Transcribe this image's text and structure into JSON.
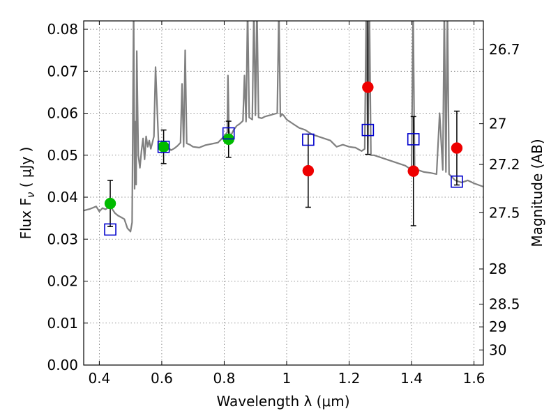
{
  "chart_data": {
    "type": "scatter",
    "xlabel": "Wavelength  λ (μm)",
    "ylabel_left": "Flux  F",
    "ylabel_left_sub": "ν",
    "ylabel_left_unit": "( μJy )",
    "ylabel_right": "Magnitude (AB)",
    "xlim": [
      0.35,
      1.63
    ],
    "ylim": [
      0.0,
      0.082
    ],
    "x_ticks": [
      0.4,
      0.6,
      0.8,
      1.0,
      1.2,
      1.4,
      1.6
    ],
    "x_tick_labels": [
      "0.4",
      "0.6",
      "0.8",
      "1",
      "1.2",
      "1.4",
      "1.6"
    ],
    "y_ticks": [
      0.0,
      0.01,
      0.02,
      0.03,
      0.04,
      0.05,
      0.06,
      0.07,
      0.08
    ],
    "y_tick_labels": [
      "0.00",
      "0.01",
      "0.02",
      "0.03",
      "0.04",
      "0.05",
      "0.06",
      "0.07",
      "0.08"
    ],
    "right_ticks": [
      {
        "label": "26.7",
        "flux": 0.0752
      },
      {
        "label": "27",
        "flux": 0.0575
      },
      {
        "label": "27.2",
        "flux": 0.0478
      },
      {
        "label": "27.5",
        "flux": 0.0363
      },
      {
        "label": "28",
        "flux": 0.0229
      },
      {
        "label": "28.5",
        "flux": 0.0145
      },
      {
        "label": "29",
        "flux": 0.0091
      },
      {
        "label": "30",
        "flux": 0.0036
      }
    ],
    "grid": true,
    "series": [
      {
        "marker": "circle",
        "color": "#00bb00",
        "points": [
          {
            "x": 0.435,
            "y": 0.0385,
            "err": 0.0055
          },
          {
            "x": 0.606,
            "y": 0.052,
            "err": 0.004
          },
          {
            "x": 0.814,
            "y": 0.0538,
            "err": 0.0043
          }
        ]
      },
      {
        "marker": "circle",
        "color": "#ee0000",
        "points": [
          {
            "x": 1.069,
            "y": 0.0463,
            "err": 0.0087
          },
          {
            "x": 1.26,
            "y": 0.0662,
            "err": 0.016
          },
          {
            "x": 1.406,
            "y": 0.0462,
            "err": 0.013
          },
          {
            "x": 1.545,
            "y": 0.0517,
            "err": 0.0088
          }
        ]
      },
      {
        "marker": "open-square",
        "color": "#0000cc",
        "points": [
          {
            "x": 0.435,
            "y": 0.0323
          },
          {
            "x": 0.606,
            "y": 0.052
          },
          {
            "x": 0.814,
            "y": 0.0552
          },
          {
            "x": 1.069,
            "y": 0.0537
          },
          {
            "x": 1.26,
            "y": 0.056
          },
          {
            "x": 1.406,
            "y": 0.0538
          },
          {
            "x": 1.545,
            "y": 0.0437
          }
        ]
      }
    ],
    "spectrum": {
      "color": "#808080",
      "x": [
        0.35,
        0.37,
        0.39,
        0.4,
        0.41,
        0.42,
        0.43,
        0.44,
        0.45,
        0.46,
        0.47,
        0.48,
        0.49,
        0.5,
        0.505,
        0.51,
        0.513,
        0.515,
        0.518,
        0.52,
        0.525,
        0.53,
        0.535,
        0.54,
        0.545,
        0.55,
        0.555,
        0.56,
        0.565,
        0.57,
        0.575,
        0.58,
        0.59,
        0.6,
        0.62,
        0.63,
        0.64,
        0.65,
        0.66,
        0.665,
        0.67,
        0.675,
        0.68,
        0.69,
        0.7,
        0.72,
        0.74,
        0.76,
        0.78,
        0.8,
        0.81,
        0.812,
        0.815,
        0.82,
        0.83,
        0.84,
        0.85,
        0.86,
        0.865,
        0.87,
        0.875,
        0.88,
        0.89,
        0.895,
        0.9,
        0.905,
        0.91,
        0.92,
        0.93,
        0.95,
        0.97,
        0.975,
        0.98,
        0.985,
        0.99,
        1.0,
        1.02,
        1.04,
        1.06,
        1.08,
        1.1,
        1.12,
        1.14,
        1.16,
        1.18,
        1.2,
        1.22,
        1.24,
        1.25,
        1.255,
        1.26,
        1.265,
        1.27,
        1.28,
        1.3,
        1.32,
        1.34,
        1.36,
        1.38,
        1.39,
        1.4,
        1.405,
        1.41,
        1.42,
        1.44,
        1.46,
        1.48,
        1.49,
        1.5,
        1.505,
        1.51,
        1.515,
        1.52,
        1.54,
        1.56,
        1.58,
        1.6,
        1.63
      ],
      "y": [
        0.0368,
        0.0372,
        0.0378,
        0.0366,
        0.0374,
        0.0371,
        0.0376,
        0.0373,
        0.0362,
        0.0356,
        0.0352,
        0.0348,
        0.0326,
        0.0318,
        0.034,
        0.085,
        0.042,
        0.058,
        0.043,
        0.0748,
        0.05,
        0.047,
        0.051,
        0.054,
        0.049,
        0.0545,
        0.052,
        0.0535,
        0.0515,
        0.053,
        0.0545,
        0.071,
        0.0525,
        0.051,
        0.0518,
        0.0512,
        0.0516,
        0.0522,
        0.053,
        0.067,
        0.052,
        0.075,
        0.0528,
        0.0525,
        0.052,
        0.0518,
        0.0524,
        0.0527,
        0.053,
        0.0545,
        0.0555,
        0.069,
        0.056,
        0.0545,
        0.056,
        0.057,
        0.0575,
        0.0582,
        0.069,
        0.058,
        0.085,
        0.059,
        0.0585,
        0.085,
        0.0595,
        0.085,
        0.059,
        0.0588,
        0.0592,
        0.0596,
        0.06,
        0.085,
        0.0592,
        0.0598,
        0.0595,
        0.0585,
        0.0575,
        0.0565,
        0.056,
        0.055,
        0.0545,
        0.054,
        0.0535,
        0.052,
        0.0525,
        0.052,
        0.0518,
        0.051,
        0.0515,
        0.085,
        0.0505,
        0.085,
        0.05,
        0.05,
        0.0495,
        0.049,
        0.0485,
        0.048,
        0.0475,
        0.047,
        0.0465,
        0.085,
        0.046,
        0.0465,
        0.046,
        0.0458,
        0.0455,
        0.06,
        0.0465,
        0.085,
        0.046,
        0.085,
        0.0455,
        0.044,
        0.0435,
        0.044,
        0.0433,
        0.0425
      ]
    }
  }
}
